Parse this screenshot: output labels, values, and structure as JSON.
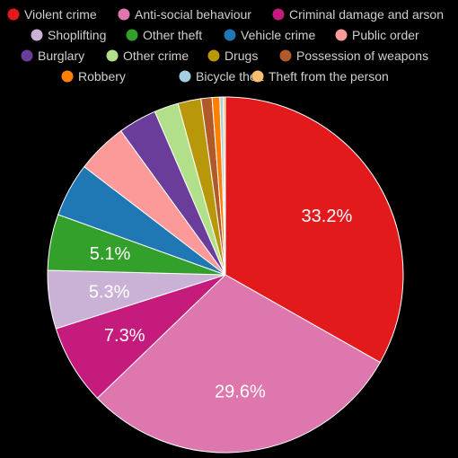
{
  "chart_data": {
    "type": "pie",
    "title": "",
    "legend_position": "top",
    "slices": [
      {
        "label": "Violent crime",
        "value": 33.2,
        "color": "#e31a1c",
        "data_label": "33.2%"
      },
      {
        "label": "Anti-social behaviour",
        "value": 29.6,
        "color": "#de77ae",
        "data_label": "29.6%"
      },
      {
        "label": "Criminal damage and arson",
        "value": 7.3,
        "color": "#c51b7d",
        "data_label": "7.3%"
      },
      {
        "label": "Shoplifting",
        "value": 5.3,
        "color": "#c9b2d6",
        "data_label": "5.3%"
      },
      {
        "label": "Other theft",
        "value": 5.1,
        "color": "#33a02c",
        "data_label": "5.1%"
      },
      {
        "label": "Vehicle crime",
        "value": 4.9,
        "color": "#1f78b4",
        "data_label": ""
      },
      {
        "label": "Public order",
        "value": 4.6,
        "color": "#fb9a99",
        "data_label": ""
      },
      {
        "label": "Burglary",
        "value": 3.5,
        "color": "#6a3d9a",
        "data_label": ""
      },
      {
        "label": "Other crime",
        "value": 2.2,
        "color": "#b2df8a",
        "data_label": ""
      },
      {
        "label": "Drugs",
        "value": 2.1,
        "color": "#b8980a",
        "data_label": ""
      },
      {
        "label": "Possession of weapons",
        "value": 1.0,
        "color": "#b15928",
        "data_label": ""
      },
      {
        "label": "Robbery",
        "value": 0.7,
        "color": "#ff7f00",
        "data_label": ""
      },
      {
        "label": "Bicycle theft",
        "value": 0.3,
        "color": "#a6cee3",
        "data_label": ""
      },
      {
        "label": "Theft from the person",
        "value": 0.2,
        "color": "#fdbf6f",
        "data_label": ""
      }
    ]
  }
}
